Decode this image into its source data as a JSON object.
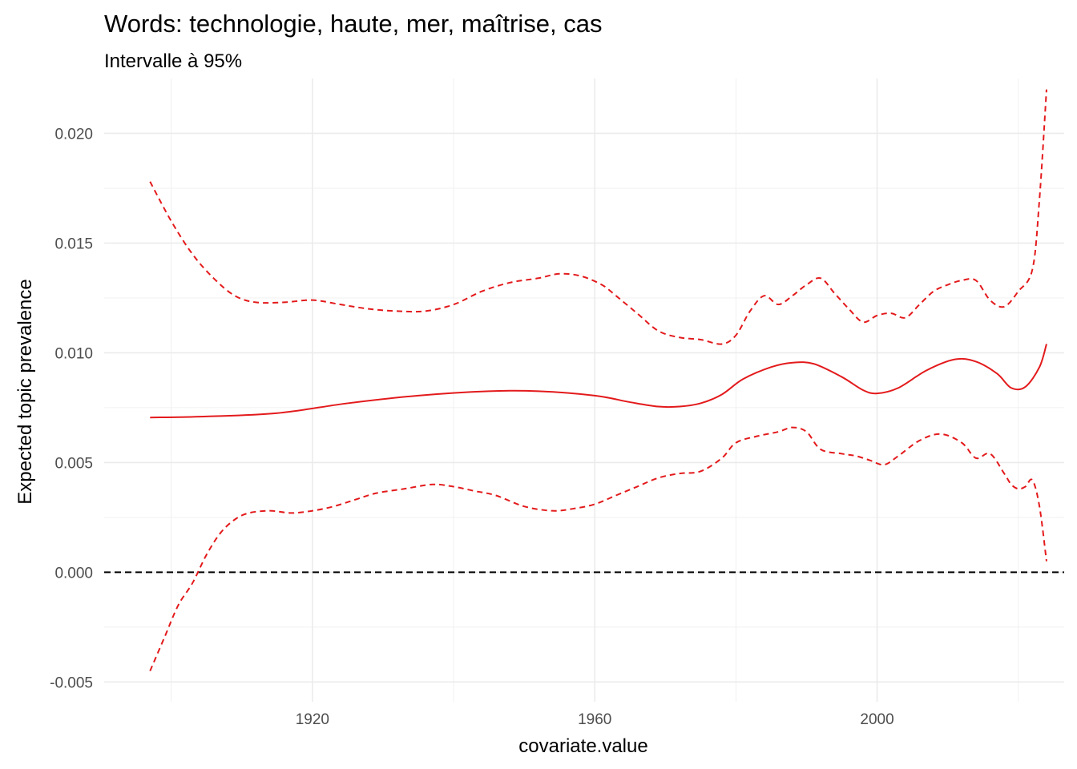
{
  "chart_data": {
    "type": "line",
    "title": "Words: technologie, haute, mer, maîtrise, cas",
    "subtitle": "Intervalle à 95%",
    "xlabel": "covariate.value",
    "ylabel": "Expected topic prevalence",
    "xlim": [
      1890.5,
      2026.5
    ],
    "ylim": [
      -0.0059,
      0.0225
    ],
    "x_ticks": [
      1920,
      1960,
      2000
    ],
    "x_tick_labels": [
      "1920",
      "1960",
      "2000"
    ],
    "y_ticks": [
      -0.005,
      0.0,
      0.005,
      0.01,
      0.015,
      0.02
    ],
    "y_tick_labels": [
      "-0.005",
      "0.000",
      "0.005",
      "0.010",
      "0.015",
      "0.020"
    ],
    "grid": true,
    "legend": "none",
    "reference_line": {
      "y": 0,
      "style": "dashed",
      "color": "#000000"
    },
    "series": [
      {
        "role": "estimate",
        "style": "solid",
        "color": "#e31a1c",
        "x": [
          1897,
          1905,
          1915,
          1925,
          1935,
          1945,
          1952,
          1960,
          1965,
          1969,
          1972,
          1975,
          1978,
          1981,
          1985,
          1988,
          1991,
          1995,
          1998,
          2000,
          2003,
          2007,
          2011,
          2014,
          2017,
          2019,
          2021,
          2023,
          2024
        ],
        "y": [
          0.00705,
          0.0071,
          0.00725,
          0.0077,
          0.00805,
          0.00825,
          0.00825,
          0.00805,
          0.00775,
          0.00755,
          0.00755,
          0.0077,
          0.0081,
          0.0088,
          0.00935,
          0.00955,
          0.0095,
          0.0089,
          0.0083,
          0.00815,
          0.0084,
          0.0092,
          0.0097,
          0.0096,
          0.00905,
          0.0084,
          0.00845,
          0.00935,
          0.0104
        ]
      },
      {
        "role": "upper bound",
        "style": "dashed",
        "color": "#e31a1c",
        "x": [
          1897,
          1900,
          1903,
          1906,
          1909,
          1912,
          1916,
          1920,
          1924,
          1928,
          1932,
          1936,
          1940,
          1944,
          1948,
          1952,
          1955,
          1958,
          1961,
          1963,
          1966,
          1969,
          1972,
          1975,
          1978,
          1980,
          1982,
          1984,
          1986,
          1988,
          1990,
          1992,
          1994,
          1996,
          1998,
          2000,
          2002,
          2004,
          2006,
          2008,
          2010,
          2012,
          2014,
          2016,
          2018,
          2020,
          2022,
          2023,
          2024
        ],
        "y": [
          0.0178,
          0.016,
          0.0145,
          0.0134,
          0.0126,
          0.0123,
          0.0123,
          0.0124,
          0.0122,
          0.012,
          0.0119,
          0.0119,
          0.0122,
          0.0128,
          0.0132,
          0.0134,
          0.0136,
          0.0135,
          0.0131,
          0.0126,
          0.0118,
          0.011,
          0.0107,
          0.0106,
          0.0104,
          0.0108,
          0.0119,
          0.0126,
          0.0122,
          0.0126,
          0.0131,
          0.0134,
          0.0127,
          0.012,
          0.0114,
          0.0117,
          0.0118,
          0.0116,
          0.0122,
          0.0128,
          0.0131,
          0.0133,
          0.0133,
          0.0124,
          0.0121,
          0.0128,
          0.0138,
          0.017,
          0.022
        ]
      },
      {
        "role": "lower bound",
        "style": "dashed",
        "color": "#e31a1c",
        "x": [
          1897,
          1899,
          1901,
          1903,
          1905,
          1907,
          1909,
          1911,
          1914,
          1917,
          1920,
          1923,
          1926,
          1929,
          1933,
          1937,
          1940,
          1943,
          1946,
          1950,
          1954,
          1957,
          1960,
          1963,
          1966,
          1969,
          1972,
          1975,
          1978,
          1980,
          1983,
          1986,
          1988,
          1990,
          1992,
          1995,
          1997,
          1999,
          2001,
          2003,
          2006,
          2009,
          2012,
          2014,
          2016,
          2018,
          2019,
          2020,
          2021,
          2022,
          2023,
          2024
        ],
        "y": [
          -0.0045,
          -0.003,
          -0.0015,
          -0.0005,
          0.0008,
          0.0018,
          0.0024,
          0.0027,
          0.0028,
          0.0027,
          0.0028,
          0.003,
          0.0033,
          0.0036,
          0.0038,
          0.004,
          0.0039,
          0.0037,
          0.0035,
          0.003,
          0.0028,
          0.0029,
          0.0031,
          0.0035,
          0.0039,
          0.0043,
          0.0045,
          0.0046,
          0.0052,
          0.0059,
          0.0062,
          0.0064,
          0.0066,
          0.0064,
          0.0056,
          0.0054,
          0.0053,
          0.0051,
          0.0049,
          0.0053,
          0.006,
          0.0063,
          0.0059,
          0.0052,
          0.0054,
          0.0045,
          0.004,
          0.0038,
          0.0039,
          0.0042,
          0.003,
          0.0005
        ]
      }
    ]
  }
}
